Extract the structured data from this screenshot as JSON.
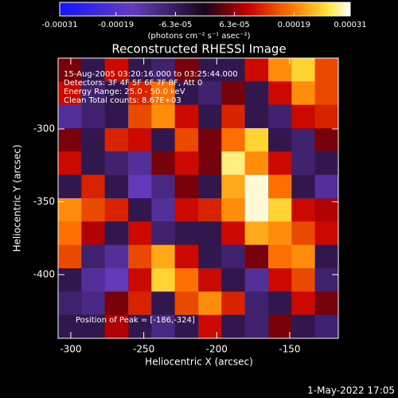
{
  "chart_data": {
    "type": "heatmap",
    "title": "Reconstructed RHESSI Image",
    "xlabel": "Heliocentric X (arcsec)",
    "ylabel": "Heliocentric Y (arcsec)",
    "colorbar_label": "(photons cm⁻² s⁻¹ asec⁻²)",
    "annotations": [
      "15-Aug-2005 03:20:16.000 to 03:25:44.000",
      "Detectors: 3F 4F 5F 6F 7F 8F, Att 0",
      "Energy Range: 25.0 - 50.0 keV",
      "Clean    Total counts: 8.67E+03"
    ],
    "peak_label": "Position of Peak = [-186,-324]",
    "timestamp": "1-May-2022 17:05",
    "xlim": [
      -308.7,
      -116.7
    ],
    "ylim": [
      -443.7,
      -251.4
    ],
    "xticks": [
      -300,
      -250,
      -200,
      -150
    ],
    "yticks": [
      -300,
      -350,
      -400
    ],
    "zlim": [
      -0.00031,
      0.00031
    ],
    "zticks": [
      {
        "value": -0.00031,
        "label": "-0.00031"
      },
      {
        "value": -0.00019,
        "label": "-0.00019"
      },
      {
        "value": -6.3e-05,
        "label": "-6.3e-05"
      },
      {
        "value": 6.3e-05,
        "label": "6.3e-05"
      },
      {
        "value": 0.00019,
        "label": "0.00019"
      },
      {
        "value": 0.00031,
        "label": "0.00031"
      }
    ],
    "z": [
      [
        5e-05,
        -5e-05,
        0.0001,
        -5e-05,
        -8e-05,
        5e-05,
        -5e-05,
        -5e-05,
        0.0001,
        0.0002,
        0.00025,
        0.00015
      ],
      [
        0.0001,
        -8e-05,
        -5e-05,
        0.00012,
        0.00018,
        -5e-05,
        -8e-05,
        5e-05,
        -5e-05,
        0.0001,
        0.0002,
        0.00015
      ],
      [
        -0.00012,
        -8e-05,
        -5e-05,
        0.00015,
        0.0002,
        0.0001,
        -5e-05,
        0.00012,
        -5e-05,
        -8e-05,
        0.0001,
        0.00012
      ],
      [
        5e-05,
        -5e-05,
        0.00012,
        0.0001,
        -5e-05,
        0.00015,
        5e-05,
        0.00018,
        0.00025,
        -5e-05,
        -8e-05,
        5e-05
      ],
      [
        0.0001,
        -5e-05,
        -8e-05,
        -0.00012,
        5e-05,
        0.0001,
        5e-05,
        0.00028,
        0.0002,
        0.0001,
        -8e-05,
        -5e-05
      ],
      [
        -5e-05,
        0.00012,
        -5e-05,
        -0.00015,
        -0.0001,
        5e-05,
        -5e-05,
        0.00022,
        0.0003,
        0.00018,
        -5e-05,
        -0.00012
      ],
      [
        0.0002,
        0.00015,
        0.00012,
        -5e-05,
        -0.00012,
        0.0001,
        0.00012,
        0.0002,
        0.0003,
        0.00025,
        0.0001,
        8e-05
      ],
      [
        0.00018,
        8e-05,
        -5e-05,
        0.0001,
        -8e-05,
        -5e-05,
        -5e-05,
        0.0001,
        0.00022,
        0.0002,
        0.00015,
        0.0001
      ],
      [
        0.00015,
        -8e-05,
        -0.00012,
        0.00015,
        0.00022,
        0.0001,
        -5e-05,
        -8e-05,
        5e-05,
        0.00018,
        0.0002,
        -5e-05
      ],
      [
        -5e-05,
        -0.00012,
        -0.00015,
        0.0001,
        0.00025,
        0.00018,
        0.0001,
        -5e-05,
        -0.00012,
        0.0001,
        0.00015,
        -8e-05
      ],
      [
        -8e-05,
        -0.0001,
        5e-05,
        0.00012,
        -5e-05,
        0.00015,
        0.0002,
        0.00012,
        -8e-05,
        -5e-05,
        0.0001,
        5e-05
      ],
      [
        -5e-05,
        -5e-05,
        8e-05,
        -5e-05,
        -0.0001,
        -5e-05,
        0.0001,
        -5e-05,
        -8e-05,
        5e-05,
        -5e-05,
        -8e-05
      ]
    ]
  }
}
